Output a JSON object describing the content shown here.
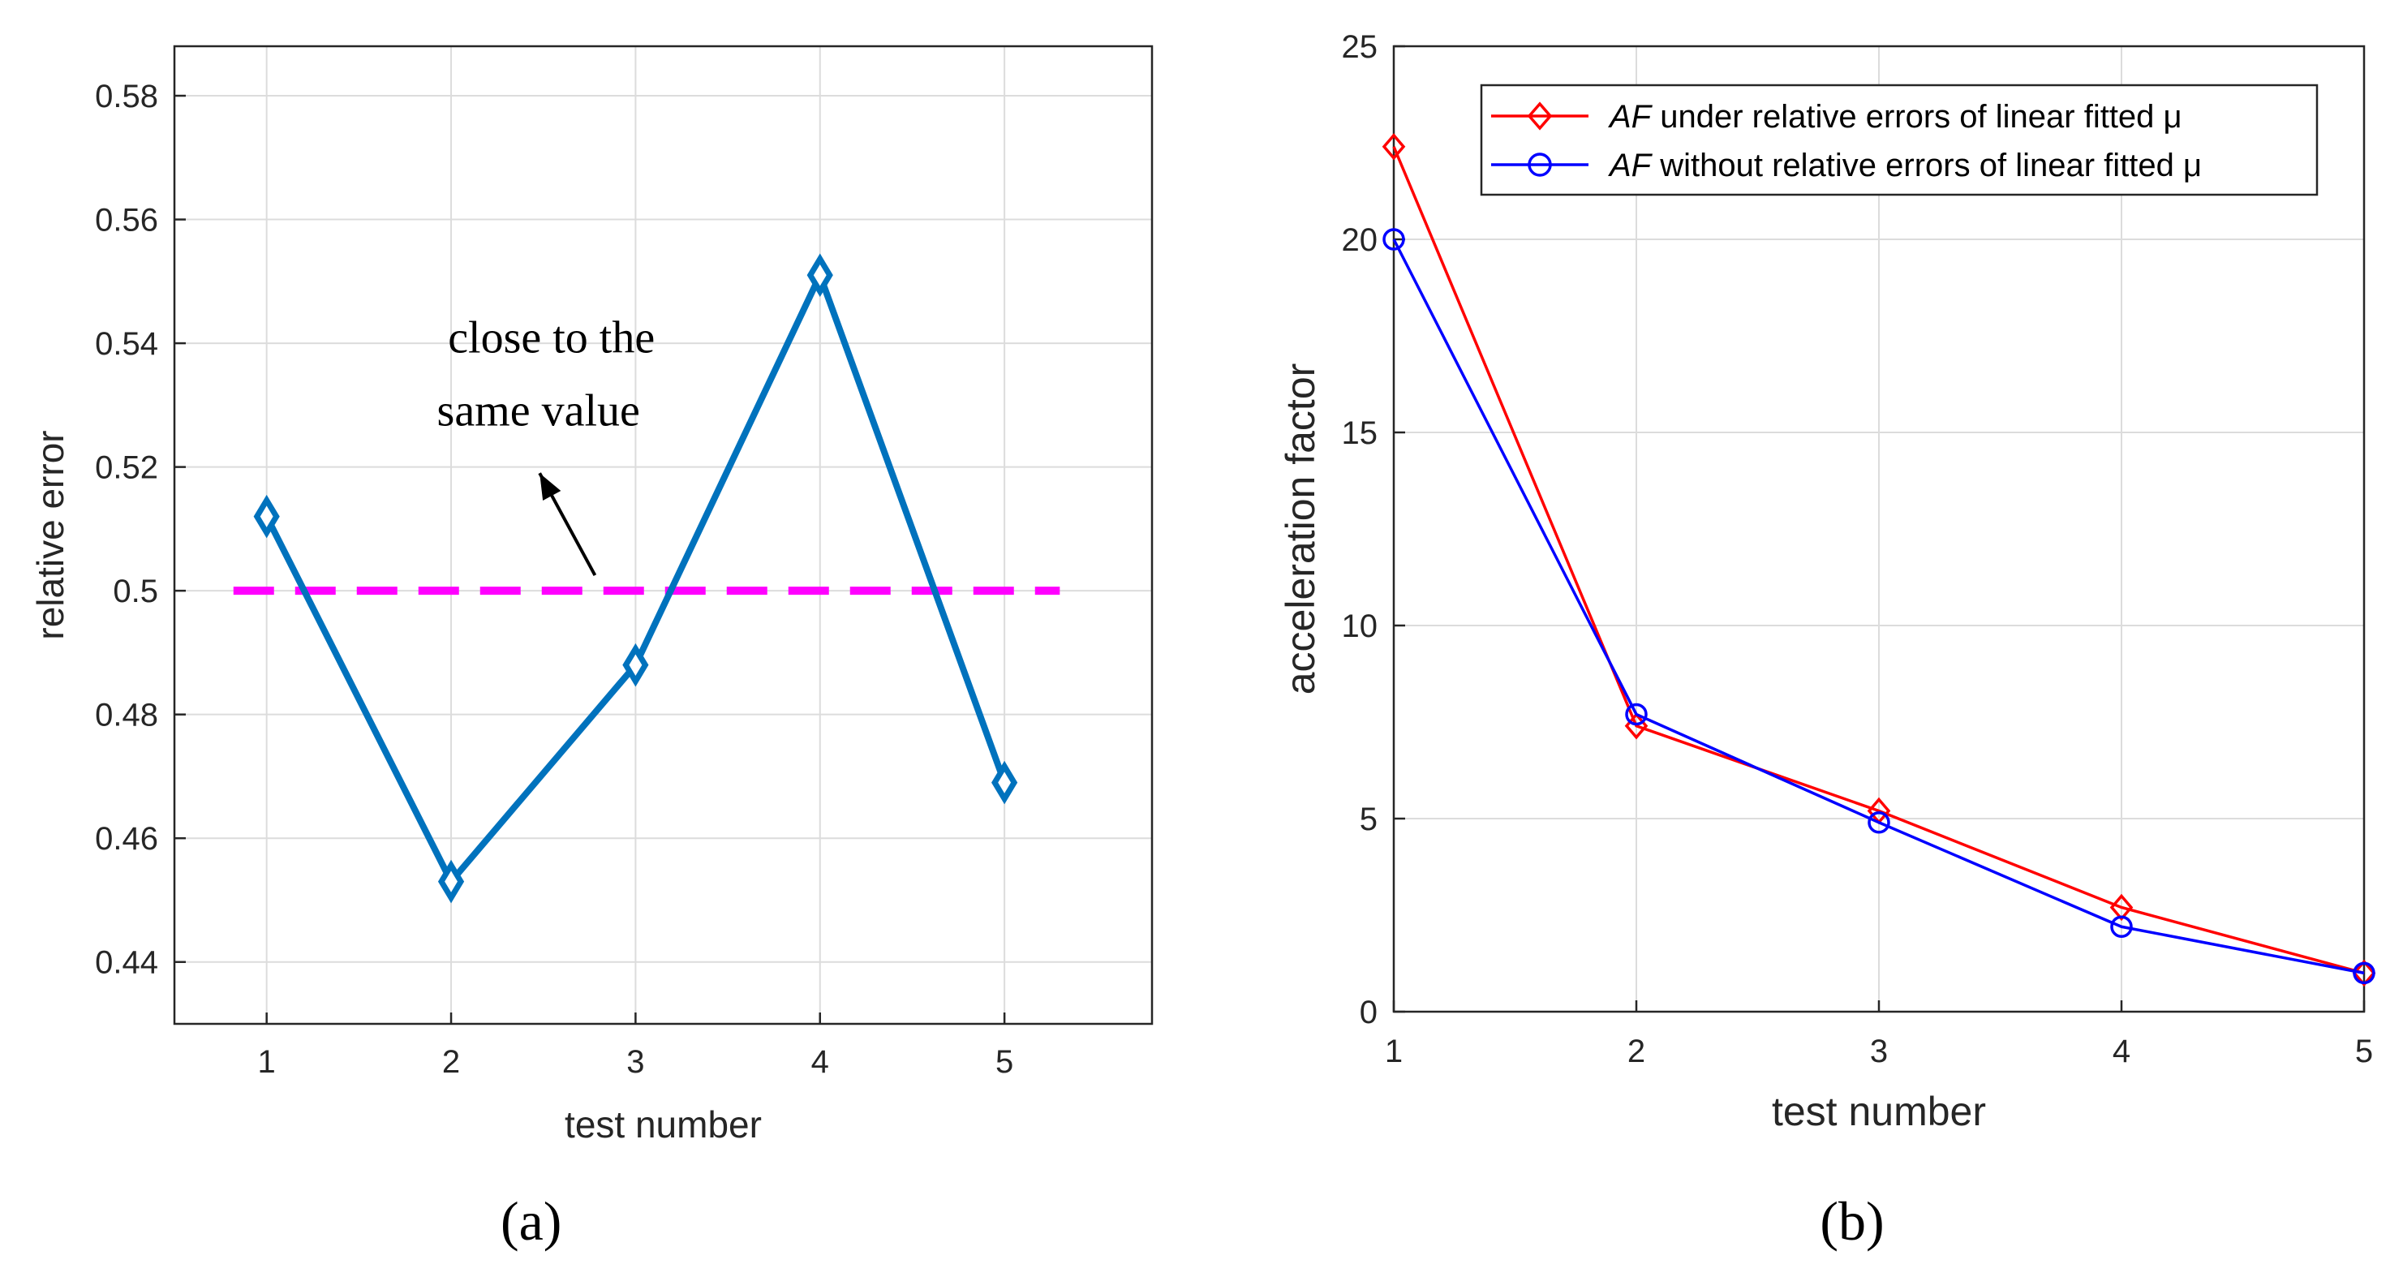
{
  "chart_data": [
    {
      "panel": "(a)",
      "type": "line",
      "xlabel": "test number",
      "ylabel": "relative error",
      "xlim": [
        0.5,
        5.8
      ],
      "ylim": [
        0.43,
        0.588
      ],
      "xticks": [
        1,
        2,
        3,
        4,
        5
      ],
      "yticks": [
        0.44,
        0.46,
        0.48,
        0.5,
        0.52,
        0.54,
        0.56,
        0.58
      ],
      "ytick_labels": [
        "0.44",
        "0.46",
        "0.48",
        "0.5",
        "0.52",
        "0.54",
        "0.56",
        "0.58"
      ],
      "grid": true,
      "series": [
        {
          "name": "relative error",
          "x": [
            1,
            2,
            3,
            4,
            5
          ],
          "values": [
            0.512,
            0.453,
            0.488,
            0.551,
            0.469
          ],
          "color": "#0072bd",
          "marker": "diamond"
        }
      ],
      "reference_line": {
        "y": 0.5,
        "x_range": [
          0.82,
          5.3
        ],
        "color": "#ff00ff",
        "style": "dashed"
      },
      "annotation": {
        "lines": [
          "close to the",
          "same value"
        ],
        "arrow_from": [
          2.78,
          0.5025
        ],
        "arrow_to": [
          2.48,
          0.519
        ]
      }
    },
    {
      "panel": "(b)",
      "type": "line",
      "xlabel": "test number",
      "ylabel": "acceleration factor",
      "xlim": [
        1,
        5
      ],
      "ylim": [
        0,
        25
      ],
      "xticks": [
        1,
        2,
        3,
        4,
        5
      ],
      "yticks": [
        0,
        5,
        10,
        15,
        20,
        25
      ],
      "grid": true,
      "legend_position": "top-right",
      "series": [
        {
          "name_italic": "AF",
          "name_rest": " under relative errors of linear fitted μ",
          "x": [
            1,
            2,
            3,
            4,
            5
          ],
          "values": [
            22.4,
            7.4,
            5.2,
            2.7,
            1.0
          ],
          "color": "#ff0000",
          "marker": "diamond"
        },
        {
          "name_italic": "AF",
          "name_rest": " without relative errors of linear fitted μ",
          "x": [
            1,
            2,
            3,
            4,
            5
          ],
          "values": [
            20.0,
            7.7,
            4.9,
            2.2,
            1.0
          ],
          "color": "#0000ff",
          "marker": "circle"
        }
      ]
    }
  ]
}
